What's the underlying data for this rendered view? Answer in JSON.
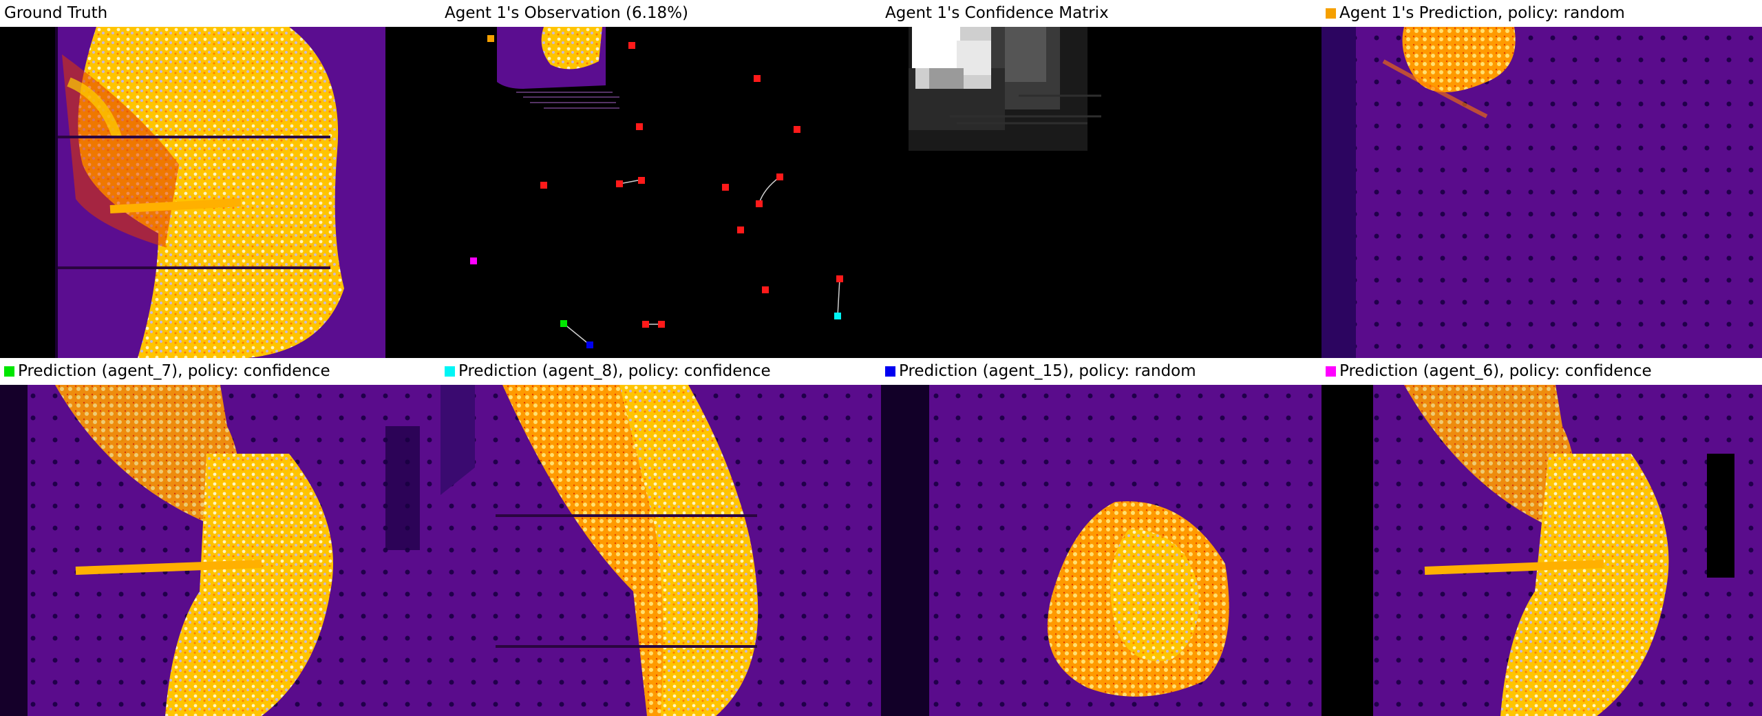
{
  "colors": {
    "agent_1": "#f5a000",
    "agent_7": "#00e600",
    "agent_8": "#00f5f5",
    "agent_15": "#0000f0",
    "agent_6": "#ff00ff",
    "marker_red": "#ff1a1a"
  },
  "panels": [
    {
      "title": "Ground Truth",
      "swatch": ""
    },
    {
      "title": "Agent 1's Observation (6.18%)",
      "swatch": ""
    },
    {
      "title": "Agent 1's Confidence Matrix",
      "swatch": ""
    },
    {
      "title": "Agent 1's Prediction, policy: random",
      "swatch": "agent_1"
    },
    {
      "title": "Prediction (agent_7), policy: confidence",
      "swatch": "agent_7"
    },
    {
      "title": "Prediction (agent_8), policy: confidence",
      "swatch": "agent_8"
    },
    {
      "title": "Prediction (agent_15), policy: random",
      "swatch": "agent_15"
    },
    {
      "title": "Prediction (agent_6), policy: confidence",
      "swatch": "agent_6"
    }
  ]
}
